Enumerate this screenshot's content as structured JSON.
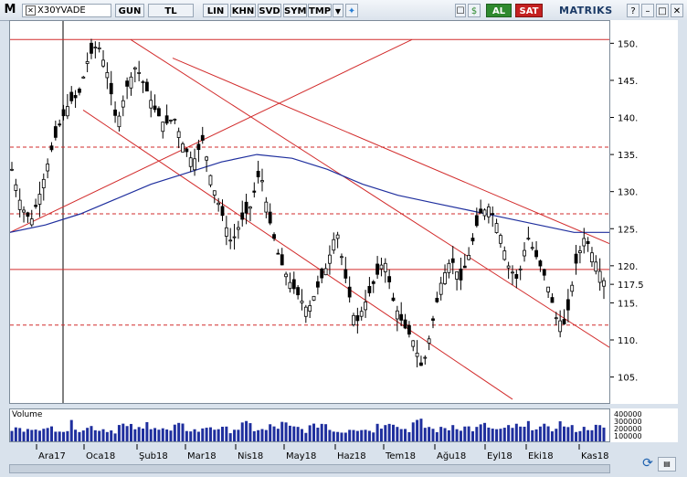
{
  "toolbar": {
    "logo": "M",
    "symbol": "X30YVADE",
    "buttons": [
      "GUN",
      "TL",
      "LIN",
      "KHN",
      "SVD",
      "SYM",
      "TMP"
    ],
    "al_label": "AL",
    "sat_label": "SAT",
    "brand": "MATRIKS"
  },
  "volume_panel": {
    "label": "Volume",
    "axis_ticks": [
      "400000",
      "300000",
      "200000",
      "100000"
    ]
  },
  "chart_data": {
    "type": "candlestick",
    "title": "",
    "y_ticks": [
      105,
      110,
      115,
      117.5,
      120,
      125,
      130,
      135,
      140,
      145,
      150
    ],
    "y_tick_labels": [
      "105.",
      "110.",
      "115.",
      "117.5",
      "120.",
      "125.",
      "130.",
      "135.",
      "140.",
      "145.",
      "150."
    ],
    "ylim": [
      101.5,
      153
    ],
    "x_labels": [
      "Ara17",
      "Oca18",
      "Şub18",
      "Mar18",
      "Nis18",
      "May18",
      "Haz18",
      "Tem18",
      "Ağu18",
      "Eyl18",
      "Eki18",
      "Kas18"
    ],
    "last_price": 117.5,
    "horizontal_levels": [
      {
        "value": 150.5,
        "style": "solid"
      },
      {
        "value": 136,
        "style": "dashed"
      },
      {
        "value": 127,
        "style": "dashed"
      },
      {
        "value": 119.5,
        "style": "solid"
      },
      {
        "value": 112,
        "style": "dashed"
      }
    ],
    "trend_lines": [
      {
        "from": [
          "Ara17-start",
          124.5
        ],
        "to": [
          "Mar18",
          150.5
        ]
      },
      {
        "from": [
          "Oca18",
          141
        ],
        "to": [
          "Ağu18",
          102
        ]
      },
      {
        "from": [
          "Şub18",
          150.5
        ],
        "to": [
          "Kas18-end",
          109
        ]
      },
      {
        "from": [
          "Mar18",
          148
        ],
        "to": [
          "Kas18-end",
          123
        ]
      }
    ],
    "moving_average": [
      124.5,
      125.5,
      127,
      129,
      131,
      132.5,
      134,
      135,
      134.5,
      133,
      131,
      129.5,
      128.5,
      127.5,
      126.5,
      125.5,
      124.5,
      124.5
    ],
    "close_series": [
      133,
      128,
      126,
      130,
      135,
      139,
      142,
      143,
      148,
      150,
      146,
      139,
      144,
      147,
      144,
      141,
      139,
      140,
      136,
      134,
      137,
      131,
      127,
      123,
      126,
      128,
      133,
      126,
      121,
      118,
      116,
      114,
      117,
      120,
      125,
      118,
      112,
      115,
      118,
      121,
      115,
      112,
      110,
      106,
      112,
      118,
      121,
      118,
      122,
      127,
      128,
      125,
      120,
      118,
      124,
      121,
      118,
      113,
      112,
      120,
      124,
      121,
      118
    ],
    "volume_series": [
      180000,
      150000,
      220000,
      160000,
      200000,
      170000,
      240000,
      190000,
      210000,
      180000,
      160000,
      230000,
      200000,
      170000,
      250000,
      190000,
      150000,
      210000,
      180000,
      160000,
      220000,
      200000,
      170000,
      190000,
      230000,
      180000,
      160000,
      210000,
      240000,
      190000,
      170000,
      200000,
      260000,
      180000,
      150000,
      210000,
      190000,
      170000,
      230000,
      320000,
      200000,
      180000,
      260000,
      210000,
      170000,
      190000,
      240000,
      200000,
      180000,
      220000,
      170000,
      160000,
      210000,
      190000,
      230000,
      200000,
      170000,
      250000,
      190000,
      180000,
      210000,
      200000,
      170000
    ],
    "colors": {
      "up": "#000000",
      "down": "#000000",
      "trend": "#d22b2b",
      "ma": "#1f2f9e",
      "volume": "#1f2f9e"
    }
  }
}
